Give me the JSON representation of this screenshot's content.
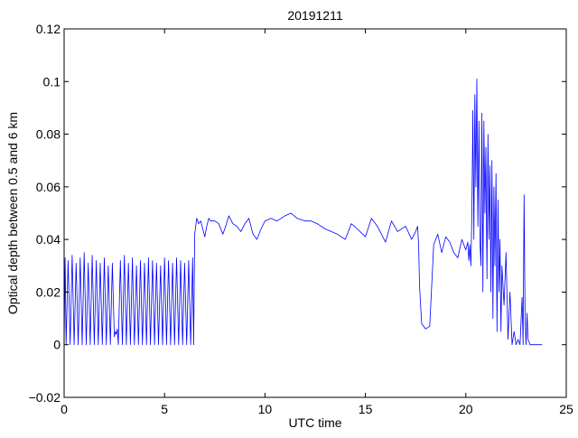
{
  "chart_data": {
    "type": "line",
    "title": "20191211",
    "xlabel": "UTC time",
    "ylabel": "Optical depth between 0.5 and 6 km",
    "xlim": [
      0,
      25
    ],
    "ylim": [
      -0.02,
      0.12
    ],
    "x_ticks": [
      0,
      5,
      10,
      15,
      20,
      25
    ],
    "x_tick_labels": [
      "0",
      "5",
      "10",
      "15",
      "20",
      "25"
    ],
    "y_ticks": [
      -0.02,
      0,
      0.02,
      0.04,
      0.06,
      0.08,
      0.1,
      0.12
    ],
    "y_tick_labels": [
      "−0.02",
      "0",
      "0.02",
      "0.04",
      "0.06",
      "0.08",
      "0.1",
      "0.12"
    ],
    "grid": false,
    "legend": "none",
    "series": [
      {
        "color": "#0000ff",
        "note_segments": "approximate trace read from the plot",
        "x": [
          0.0,
          0.05,
          0.1,
          0.2,
          0.3,
          0.4,
          0.5,
          0.6,
          0.7,
          0.8,
          0.9,
          1.0,
          1.1,
          1.2,
          1.3,
          1.4,
          1.5,
          1.6,
          1.7,
          1.8,
          1.9,
          2.0,
          2.1,
          2.2,
          2.3,
          2.4,
          2.5,
          2.55,
          2.6,
          2.65,
          2.7,
          2.8,
          2.9,
          3.0,
          3.1,
          3.2,
          3.3,
          3.4,
          3.5,
          3.6,
          3.7,
          3.8,
          3.9,
          4.0,
          4.1,
          4.2,
          4.3,
          4.4,
          4.5,
          4.6,
          4.7,
          4.8,
          4.9,
          5.0,
          5.1,
          5.2,
          5.3,
          5.4,
          5.5,
          5.6,
          5.7,
          5.8,
          5.9,
          6.0,
          6.1,
          6.2,
          6.3,
          6.4,
          6.45,
          6.5,
          6.6,
          6.7,
          6.8,
          6.9,
          7.0,
          7.1,
          7.2,
          7.3,
          7.5,
          7.7,
          7.9,
          8.0,
          8.2,
          8.4,
          8.6,
          8.8,
          9.0,
          9.2,
          9.4,
          9.6,
          9.8,
          10.0,
          10.3,
          10.6,
          11.0,
          11.3,
          11.6,
          12.0,
          12.3,
          12.6,
          13.0,
          13.3,
          13.6,
          14.0,
          14.3,
          14.6,
          15.0,
          15.3,
          15.6,
          16.0,
          16.3,
          16.6,
          17.0,
          17.3,
          17.5,
          17.55,
          17.6,
          17.65,
          17.7,
          17.8,
          18.0,
          18.2,
          18.4,
          18.6,
          18.8,
          19.0,
          19.2,
          19.4,
          19.6,
          19.8,
          20.0,
          20.1,
          20.15,
          20.2,
          20.25,
          20.3,
          20.35,
          20.4,
          20.45,
          20.5,
          20.55,
          20.6,
          20.65,
          20.7,
          20.75,
          20.8,
          20.85,
          20.9,
          20.95,
          21.0,
          21.05,
          21.1,
          21.15,
          21.2,
          21.25,
          21.3,
          21.35,
          21.4,
          21.45,
          21.5,
          21.55,
          21.6,
          21.65,
          21.7,
          21.75,
          21.8,
          21.9,
          22.0,
          22.1,
          22.2,
          22.3,
          22.4,
          22.5,
          22.6,
          22.7,
          22.8,
          22.85,
          22.9,
          22.95,
          23.0,
          23.05,
          23.1,
          23.2,
          23.3,
          23.5,
          23.8
        ],
        "y": [
          0.0,
          0.033,
          0.0,
          0.032,
          0.0,
          0.034,
          0.0,
          0.031,
          0.0,
          0.033,
          0.0,
          0.035,
          0.0,
          0.031,
          0.0,
          0.034,
          0.0,
          0.032,
          0.0,
          0.031,
          0.0,
          0.033,
          0.0,
          0.03,
          0.0,
          0.031,
          0.003,
          0.005,
          0.004,
          0.006,
          0.0,
          0.032,
          0.0,
          0.034,
          0.0,
          0.031,
          0.0,
          0.033,
          0.0,
          0.03,
          0.0,
          0.032,
          0.0,
          0.031,
          0.0,
          0.033,
          0.0,
          0.032,
          0.0,
          0.031,
          0.0,
          0.03,
          0.0,
          0.033,
          0.0,
          0.032,
          0.0,
          0.031,
          0.0,
          0.033,
          0.0,
          0.032,
          0.0,
          0.031,
          0.0,
          0.032,
          0.0,
          0.033,
          0.0,
          0.042,
          0.048,
          0.046,
          0.047,
          0.044,
          0.041,
          0.045,
          0.048,
          0.047,
          0.047,
          0.046,
          0.042,
          0.044,
          0.049,
          0.046,
          0.045,
          0.043,
          0.046,
          0.048,
          0.042,
          0.04,
          0.044,
          0.047,
          0.048,
          0.047,
          0.049,
          0.05,
          0.048,
          0.047,
          0.047,
          0.046,
          0.044,
          0.043,
          0.042,
          0.04,
          0.046,
          0.044,
          0.041,
          0.048,
          0.045,
          0.039,
          0.047,
          0.043,
          0.045,
          0.04,
          0.043,
          0.044,
          0.045,
          0.038,
          0.022,
          0.008,
          0.006,
          0.007,
          0.038,
          0.042,
          0.035,
          0.041,
          0.039,
          0.035,
          0.033,
          0.04,
          0.036,
          0.039,
          0.032,
          0.038,
          0.03,
          0.05,
          0.089,
          0.04,
          0.095,
          0.06,
          0.101,
          0.045,
          0.085,
          0.04,
          0.03,
          0.088,
          0.02,
          0.085,
          0.05,
          0.075,
          0.025,
          0.08,
          0.04,
          0.068,
          0.02,
          0.07,
          0.01,
          0.06,
          0.03,
          0.065,
          0.005,
          0.055,
          0.02,
          0.04,
          0.005,
          0.03,
          0.015,
          0.035,
          0.002,
          0.02,
          0.0,
          0.005,
          0.0,
          0.002,
          0.0,
          0.018,
          0.0,
          0.057,
          0.01,
          0.0,
          0.012,
          0.002,
          0.0,
          0.0,
          0.0,
          0.0
        ]
      }
    ]
  }
}
